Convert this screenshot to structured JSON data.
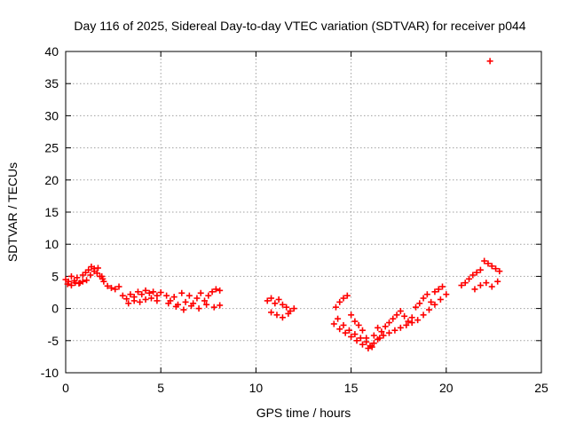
{
  "chart_data": {
    "type": "scatter",
    "title": "Day 116 of 2025, Sidereal Day-to-day VTEC variation (SDTVAR) for receiver p044",
    "xlabel": "GPS time / hours",
    "ylabel": "SDTVAR / TECUs",
    "xlim": [
      0,
      25
    ],
    "ylim": [
      -10,
      40
    ],
    "xticks": [
      "0",
      "5",
      "10",
      "15",
      "20",
      "25"
    ],
    "yticks": [
      "-10",
      "-5",
      "0",
      "5",
      "10",
      "15",
      "20",
      "25",
      "30",
      "35",
      "40"
    ],
    "grid": true,
    "marker": "plus",
    "color": "#ff0000",
    "series": [
      {
        "name": "SDTVAR",
        "x": [
          0.0,
          0.15,
          0.3,
          0.45,
          0.6,
          0.75,
          0.9,
          1.05,
          1.2,
          1.35,
          1.5,
          1.65,
          1.8,
          1.95,
          2.0,
          0.1,
          0.3,
          0.5,
          0.7,
          0.9,
          1.1,
          1.3,
          1.5,
          1.7,
          1.9,
          2.2,
          2.4,
          2.6,
          2.8,
          3.0,
          3.2,
          3.4,
          3.6,
          3.8,
          4.0,
          4.2,
          4.4,
          4.6,
          4.8,
          5.0,
          3.3,
          3.6,
          3.9,
          4.2,
          4.5,
          4.8,
          5.3,
          5.5,
          5.7,
          5.9,
          6.1,
          6.3,
          6.5,
          6.7,
          6.9,
          7.1,
          7.3,
          7.5,
          7.7,
          7.9,
          8.1,
          5.4,
          5.8,
          6.2,
          6.6,
          7.0,
          7.4,
          7.8,
          8.1,
          10.6,
          10.8,
          11.0,
          11.2,
          11.4,
          11.6,
          11.8,
          12.0,
          10.8,
          11.1,
          11.4,
          11.7,
          14.2,
          14.4,
          14.6,
          14.8,
          15.0,
          15.2,
          15.4,
          15.6,
          15.8,
          16.0,
          16.2,
          16.4,
          16.6,
          16.8,
          17.0,
          17.2,
          17.4,
          17.6,
          17.8,
          18.0,
          18.2,
          18.4,
          18.6,
          18.8,
          19.0,
          19.2,
          19.4,
          19.6,
          19.8,
          20.0,
          14.3,
          14.6,
          14.9,
          15.2,
          15.5,
          15.8,
          16.1,
          16.4,
          16.7,
          17.0,
          17.3,
          17.6,
          17.9,
          18.2,
          18.5,
          18.8,
          19.1,
          19.4,
          19.7,
          14.1,
          14.4,
          14.7,
          15.0,
          15.3,
          15.6,
          15.9,
          16.2,
          16.5,
          20.8,
          21.0,
          21.2,
          21.4,
          21.6,
          21.8,
          22.0,
          22.2,
          22.4,
          22.6,
          22.8,
          21.5,
          21.8,
          22.1,
          22.4,
          22.7,
          22.3
        ],
        "y": [
          4.5,
          4.2,
          5.0,
          4.3,
          4.8,
          4.0,
          5.2,
          5.6,
          6.0,
          6.5,
          6.2,
          5.5,
          5.0,
          4.6,
          4.2,
          3.8,
          3.6,
          4.0,
          3.9,
          4.2,
          4.4,
          5.2,
          5.8,
          6.3,
          5.0,
          3.5,
          3.2,
          3.0,
          3.4,
          2.0,
          1.5,
          2.2,
          1.8,
          2.6,
          2.2,
          2.8,
          2.4,
          2.6,
          2.0,
          2.5,
          0.8,
          1.2,
          1.0,
          1.4,
          1.6,
          1.2,
          2.0,
          1.2,
          1.8,
          0.6,
          2.4,
          1.0,
          2.0,
          0.8,
          1.6,
          2.4,
          1.2,
          2.0,
          2.6,
          3.0,
          2.8,
          0.8,
          0.3,
          -0.2,
          0.4,
          0.0,
          0.6,
          0.2,
          0.5,
          1.2,
          1.6,
          0.8,
          1.4,
          0.6,
          0.2,
          -0.4,
          0.0,
          -0.6,
          -1.0,
          -1.4,
          -0.8,
          0.2,
          1.0,
          1.6,
          2.0,
          -1.0,
          -2.0,
          -2.6,
          -3.4,
          -4.6,
          -5.8,
          -4.2,
          -3.0,
          -3.6,
          -2.8,
          -2.2,
          -1.6,
          -1.0,
          -0.4,
          -1.2,
          -2.0,
          -1.4,
          0.2,
          0.8,
          1.6,
          2.2,
          1.0,
          2.6,
          3.0,
          3.4,
          2.2,
          -1.6,
          -2.6,
          -3.4,
          -4.0,
          -4.6,
          -5.2,
          -6.0,
          -4.8,
          -4.2,
          -3.8,
          -3.4,
          -3.0,
          -2.6,
          -2.2,
          -1.8,
          -1.0,
          -0.2,
          0.6,
          1.4,
          -2.4,
          -3.2,
          -3.8,
          -4.4,
          -5.0,
          -5.6,
          -6.2,
          -5.4,
          -4.6,
          3.6,
          4.0,
          4.6,
          5.2,
          5.6,
          6.0,
          7.4,
          7.0,
          6.6,
          6.2,
          5.8,
          3.0,
          3.6,
          4.0,
          3.4,
          4.2,
          38.5
        ]
      }
    ]
  }
}
